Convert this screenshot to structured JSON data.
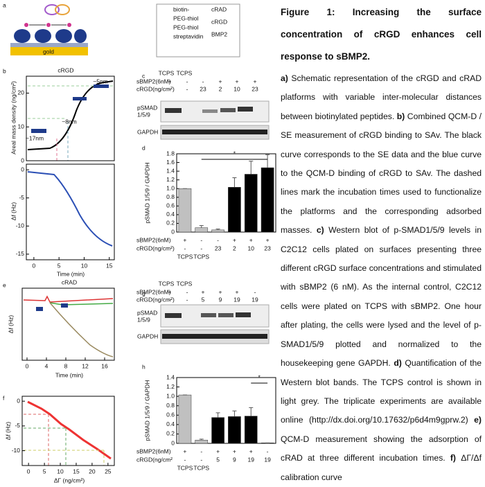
{
  "figure": {
    "a": {
      "label": "a",
      "gold": "gold",
      "legend_left": [
        "biotin-",
        "PEG-thiol",
        "PEG-thiol",
        "streptavidin"
      ],
      "legend_right": [
        "cRAD",
        "cRGD",
        "BMP2"
      ]
    },
    "b": {
      "label": "b",
      "title": "cRGD",
      "xlabel": "Time (min)",
      "annotations": [
        "~5nm",
        "~8nm",
        "~17nm"
      ],
      "upper": {
        "ylabel": "Areal mass density (ng/cm²)",
        "ylim": [
          0,
          25
        ],
        "yticks": [
          0,
          10,
          20
        ]
      },
      "lower": {
        "ylabel": "Δf (Hz)",
        "xlim": [
          -1.5,
          16
        ],
        "xticks": [
          0,
          5,
          10,
          15
        ],
        "ylim": [
          -16,
          1
        ],
        "yticks": [
          0,
          -5,
          -10,
          -15
        ]
      }
    },
    "c": {
      "label": "c",
      "headers": [
        "TCPS",
        "TCPS"
      ],
      "rows": [
        {
          "label": "sBMP2(6nM)",
          "cells": [
            "+",
            "-",
            "-",
            "+",
            "+",
            "+"
          ]
        },
        {
          "label": "cRGD(ng/cm²)",
          "cells": [
            "-",
            "-",
            "23",
            "2",
            "10",
            "23"
          ]
        }
      ],
      "blot": [
        "pSMAD",
        "1/5/9"
      ],
      "control": "GAPDH"
    },
    "d": {
      "label": "d",
      "ylabel": "pSMAD 1/5/9 / GAPDH",
      "ylim": [
        0,
        1.8
      ],
      "yticks": [
        0,
        0.2,
        0.4,
        0.6,
        0.8,
        {
          "value": 1,
          "label": "1.0"
        },
        1.2,
        1.4,
        1.6,
        1.8
      ],
      "values": [
        1.0,
        0.1,
        0.05,
        1.03,
        1.33,
        1.48
      ],
      "errors": [
        0,
        0.05,
        0.02,
        0.22,
        0.3,
        0.3
      ],
      "colors": [
        "#c0c0c0",
        "#c0c0c0",
        "#c0c0c0",
        "#000000",
        "#000000",
        "#000000"
      ],
      "significance": "*",
      "rows": [
        {
          "label": "sBMP2(6nM)",
          "cells": [
            "+",
            "-",
            "-",
            "+",
            "+",
            "+"
          ]
        },
        {
          "label": "cRGD(ng/cm²)",
          "cells": [
            "-",
            "-",
            "23",
            "2",
            "10",
            "23"
          ]
        }
      ],
      "footer": [
        "TCPS",
        "TCPS"
      ]
    },
    "e": {
      "label": "e",
      "title": "cRAD",
      "xlabel": "Time (min)",
      "ylabel": "Δf (Hz)",
      "xlim": [
        -1,
        18
      ],
      "xticks": [
        0,
        4,
        8,
        12,
        16
      ]
    },
    "f": {
      "label": "f",
      "xlabel": "ΔΓ (ng/cm²)",
      "ylabel": "Δf (Hz)",
      "xlim": [
        -2,
        27
      ],
      "xticks": [
        0,
        5,
        10,
        15,
        20,
        25
      ],
      "ylim": [
        -13,
        1
      ],
      "yticks": [
        0,
        -5,
        -10
      ]
    },
    "g": {
      "label": "g",
      "headers": [
        "TCPS",
        "TCPS"
      ],
      "rows": [
        {
          "label": "sBMP2(6nM)",
          "cells": [
            "+",
            "-",
            "+",
            "+",
            "+",
            "-"
          ]
        },
        {
          "label": "cRGD(ng/cm²)",
          "cells": [
            "-",
            "-",
            "5",
            "9",
            "19",
            "19"
          ]
        }
      ],
      "blot": [
        "pSMAD",
        "1/5/9"
      ],
      "control": "GAPDH"
    },
    "h": {
      "label": "h",
      "ylabel": "pSMAD 1/5/9 / GAPDH",
      "ylim": [
        0,
        1.4
      ],
      "yticks": [
        0,
        0.2,
        0.4,
        0.6,
        0.8,
        {
          "value": 1,
          "label": "1.0"
        },
        1.2,
        1.4
      ],
      "values": [
        1.03,
        0.07,
        0.55,
        0.57,
        0.58,
        0.01
      ],
      "errors": [
        0,
        0.02,
        0.1,
        0.12,
        0.18,
        0
      ],
      "colors": [
        "#c0c0c0",
        "#c0c0c0",
        "#000000",
        "#000000",
        "#000000",
        "#000000"
      ],
      "significance": "*",
      "rows": [
        {
          "label": "sBMP2(6nM)",
          "cells": [
            "+",
            "-",
            "+",
            "+",
            "+",
            "-"
          ]
        },
        {
          "label": "cRGD(ng/cm²",
          "cells": [
            "-",
            "-",
            "5",
            "9",
            "19",
            "19"
          ]
        }
      ],
      "footer": [
        "TCPS",
        "TCPS"
      ]
    }
  },
  "caption": {
    "title": "Figure 1: Increasing the surface concentration of cRGD enhances cell response to sBMP2.",
    "items": [
      {
        "label": "a)",
        "text": "Schematic representation of the cRGD and cRAD platforms with variable inter-molecular distances between biotinylated peptides."
      },
      {
        "label": "b)",
        "text": "Combined QCM-D / SE measurement of cRGD binding to SAv. The black curve corresponds to the SE data and the blue curve to the QCM-D binding of cRGD to SAv. The dashed lines mark the incubation times used to functionalize the platforms and the corresponding adsorbed masses."
      },
      {
        "label": "c)",
        "text": "Western blot of p-SMAD1/5/9 levels in C2C12 cells plated on surfaces presenting three different cRGD surface concentrations and stimulated with sBMP2 (6 nM). As the internal control, C2C12 cells were plated on TCPS with sBMP2. One hour after plating, the cells were lysed and the level of p-SMAD1/5/9 plotted and normalized to the housekeeping gene GAPDH."
      },
      {
        "label": "d)",
        "text": "Quantification of the Western blot bands. The TCPS control is shown in light grey. The triplicate experiments are available online (http://dx.doi.org/10.17632/p6d4m9gprw.2)"
      },
      {
        "label": "e)",
        "text": "QCM-D measurement showing the adsorption of cRAD at three different incubation times."
      },
      {
        "label": "f)",
        "text": "ΔΓ/Δf calibration curve"
      }
    ]
  }
}
